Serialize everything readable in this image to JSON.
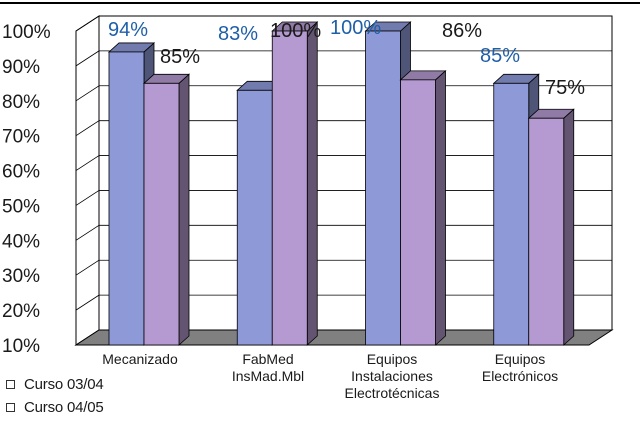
{
  "chart_data": {
    "type": "bar",
    "categories": [
      [
        "Mecanizado"
      ],
      [
        "FabMed",
        "InsMad.Mbl"
      ],
      [
        "Equipos",
        "Instalaciones",
        "Electrotécnicas"
      ],
      [
        "Equipos",
        "Electrónicos"
      ]
    ],
    "series": [
      {
        "name": "Curso 03/04",
        "values": [
          94,
          83,
          100,
          85
        ],
        "labels": [
          "94%",
          "83%",
          "100%",
          "85%"
        ],
        "color": "#8e9ad8",
        "label_color": "#1f5fa8"
      },
      {
        "name": "Curso 04/05",
        "values": [
          85,
          100,
          86,
          75
        ],
        "labels": [
          "85%",
          "100%",
          "86%",
          "75%"
        ],
        "color": "#b49ad0",
        "label_color": "#1a1a1a"
      }
    ],
    "yticks": [
      "100%",
      "90%",
      "80%",
      "70%",
      "60%",
      "50%",
      "40%",
      "30%",
      "20%",
      "10%"
    ],
    "ylim": [
      10,
      100
    ],
    "grid": true,
    "legend_position": "bottom-left",
    "title": "",
    "xlabel": "",
    "ylabel": ""
  }
}
